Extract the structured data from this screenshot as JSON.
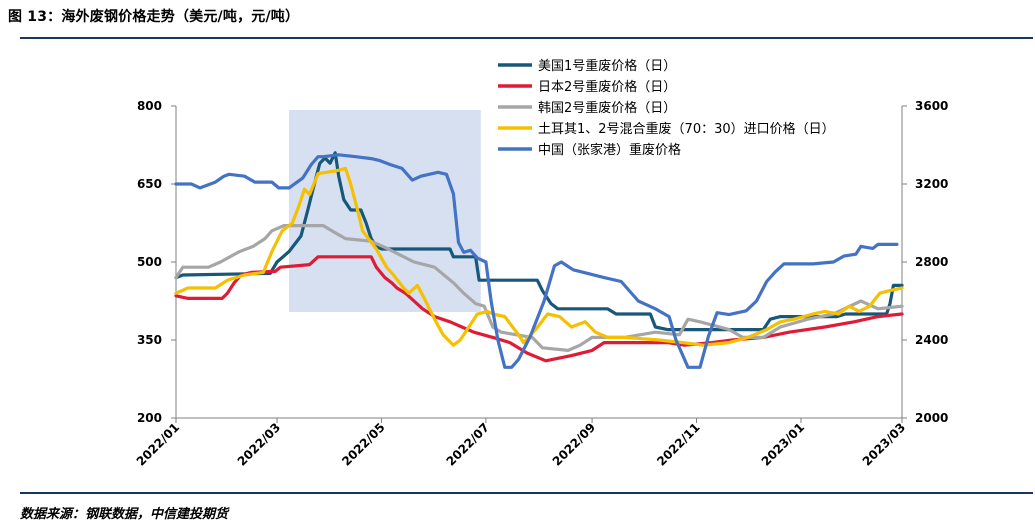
{
  "figure": {
    "title": "图 13：海外废钢价格走势（美元/吨，元/吨）",
    "source": "数据来源：钢联数据，中信建投期货"
  },
  "chart_data": {
    "type": "line",
    "xlabel": "",
    "ylabel_left": "",
    "ylabel_right": "",
    "x_ticks": [
      "2022/01",
      "2022/03",
      "2022/05",
      "2022/07",
      "2022/09",
      "2022/11",
      "2023/01",
      "2023/03"
    ],
    "x_range": [
      "2022-01-01",
      "2023-03-01"
    ],
    "y_left_ticks": [
      200,
      350,
      500,
      650,
      800
    ],
    "y_left_lim": [
      200,
      800
    ],
    "y_right_ticks": [
      2000,
      2400,
      2800,
      3200,
      3600
    ],
    "y_right_lim": [
      2000,
      3600
    ],
    "legend_position": "top-right",
    "highlight": {
      "x_start": "2022-03-08",
      "x_end": "2022-06-28",
      "color": "#d6e0f0"
    },
    "series": [
      {
        "name": "美国1号重废价格（日）",
        "axis": "left",
        "color": "#17587a",
        "points": [
          [
            "2022-01-01",
            470
          ],
          [
            "2022-01-05",
            475
          ],
          [
            "2022-02-25",
            478
          ],
          [
            "2022-03-01",
            500
          ],
          [
            "2022-03-08",
            520
          ],
          [
            "2022-03-15",
            550
          ],
          [
            "2022-03-19",
            600
          ],
          [
            "2022-03-22",
            640
          ],
          [
            "2022-03-26",
            690
          ],
          [
            "2022-03-29",
            700
          ],
          [
            "2022-04-01",
            690
          ],
          [
            "2022-04-04",
            710
          ],
          [
            "2022-04-06",
            665
          ],
          [
            "2022-04-09",
            620
          ],
          [
            "2022-04-13",
            600
          ],
          [
            "2022-04-19",
            600
          ],
          [
            "2022-04-22",
            575
          ],
          [
            "2022-04-25",
            545
          ],
          [
            "2022-04-28",
            530
          ],
          [
            "2022-05-01",
            525
          ],
          [
            "2022-06-10",
            525
          ],
          [
            "2022-06-12",
            510
          ],
          [
            "2022-06-25",
            510
          ],
          [
            "2022-06-27",
            465
          ],
          [
            "2022-07-31",
            465
          ],
          [
            "2022-08-03",
            445
          ],
          [
            "2022-08-08",
            420
          ],
          [
            "2022-08-12",
            410
          ],
          [
            "2022-09-10",
            410
          ],
          [
            "2022-09-15",
            400
          ],
          [
            "2022-10-05",
            400
          ],
          [
            "2022-10-08",
            375
          ],
          [
            "2022-10-15",
            370
          ],
          [
            "2022-12-10",
            370
          ],
          [
            "2022-12-14",
            390
          ],
          [
            "2022-12-20",
            395
          ],
          [
            "2023-01-22",
            395
          ],
          [
            "2023-01-27",
            400
          ],
          [
            "2023-02-20",
            400
          ],
          [
            "2023-02-22",
            420
          ],
          [
            "2023-02-24",
            455
          ],
          [
            "2023-03-01",
            455
          ]
        ]
      },
      {
        "name": "日本2号重废价格（日）",
        "axis": "left",
        "color": "#e01b36",
        "points": [
          [
            "2022-01-01",
            435
          ],
          [
            "2022-01-08",
            430
          ],
          [
            "2022-01-28",
            430
          ],
          [
            "2022-01-31",
            440
          ],
          [
            "2022-02-04",
            460
          ],
          [
            "2022-02-08",
            475
          ],
          [
            "2022-02-14",
            480
          ],
          [
            "2022-02-28",
            482
          ],
          [
            "2022-03-03",
            490
          ],
          [
            "2022-03-20",
            495
          ],
          [
            "2022-03-25",
            510
          ],
          [
            "2022-04-25",
            510
          ],
          [
            "2022-04-28",
            490
          ],
          [
            "2022-05-03",
            470
          ],
          [
            "2022-05-07",
            460
          ],
          [
            "2022-05-10",
            450
          ],
          [
            "2022-05-15",
            440
          ],
          [
            "2022-05-20",
            425
          ],
          [
            "2022-05-25",
            410
          ],
          [
            "2022-06-01",
            395
          ],
          [
            "2022-06-10",
            385
          ],
          [
            "2022-06-17",
            375
          ],
          [
            "2022-06-24",
            365
          ],
          [
            "2022-07-05",
            355
          ],
          [
            "2022-07-15",
            345
          ],
          [
            "2022-07-25",
            325
          ],
          [
            "2022-08-05",
            310
          ],
          [
            "2022-08-20",
            320
          ],
          [
            "2022-09-01",
            330
          ],
          [
            "2022-09-08",
            345
          ],
          [
            "2022-10-15",
            345
          ],
          [
            "2022-10-25",
            340
          ],
          [
            "2022-11-10",
            345
          ],
          [
            "2022-11-22",
            350
          ],
          [
            "2022-12-10",
            355
          ],
          [
            "2022-12-25",
            365
          ],
          [
            "2023-01-15",
            375
          ],
          [
            "2023-02-01",
            385
          ],
          [
            "2023-02-15",
            395
          ],
          [
            "2023-03-01",
            400
          ]
        ]
      },
      {
        "name": "韩国2号重废价格（日）",
        "axis": "left",
        "color": "#a6a6a6",
        "points": [
          [
            "2022-01-01",
            470
          ],
          [
            "2022-01-05",
            490
          ],
          [
            "2022-01-20",
            490
          ],
          [
            "2022-01-27",
            500
          ],
          [
            "2022-02-07",
            520
          ],
          [
            "2022-02-15",
            530
          ],
          [
            "2022-02-22",
            545
          ],
          [
            "2022-02-26",
            560
          ],
          [
            "2022-03-05",
            570
          ],
          [
            "2022-03-28",
            570
          ],
          [
            "2022-04-02",
            560
          ],
          [
            "2022-04-10",
            545
          ],
          [
            "2022-04-25",
            540
          ],
          [
            "2022-05-05",
            525
          ],
          [
            "2022-05-20",
            500
          ],
          [
            "2022-06-01",
            490
          ],
          [
            "2022-06-12",
            460
          ],
          [
            "2022-06-18",
            440
          ],
          [
            "2022-06-25",
            420
          ],
          [
            "2022-06-30",
            415
          ],
          [
            "2022-07-05",
            375
          ],
          [
            "2022-07-10",
            365
          ],
          [
            "2022-07-28",
            355
          ],
          [
            "2022-08-03",
            335
          ],
          [
            "2022-08-18",
            330
          ],
          [
            "2022-08-25",
            340
          ],
          [
            "2022-09-01",
            355
          ],
          [
            "2022-09-20",
            355
          ],
          [
            "2022-10-08",
            365
          ],
          [
            "2022-10-22",
            360
          ],
          [
            "2022-10-27",
            390
          ],
          [
            "2022-11-03",
            385
          ],
          [
            "2022-11-20",
            370
          ],
          [
            "2022-11-28",
            355
          ],
          [
            "2022-12-10",
            355
          ],
          [
            "2022-12-20",
            375
          ],
          [
            "2023-01-05",
            390
          ],
          [
            "2023-01-20",
            400
          ],
          [
            "2023-02-05",
            425
          ],
          [
            "2023-02-15",
            410
          ],
          [
            "2023-03-01",
            415
          ]
        ]
      },
      {
        "name": "土耳其1、2号混合重废（70：30）进口价格（日）",
        "axis": "left",
        "color": "#f5c000",
        "points": [
          [
            "2022-01-01",
            440
          ],
          [
            "2022-01-08",
            450
          ],
          [
            "2022-01-24",
            450
          ],
          [
            "2022-01-31",
            465
          ],
          [
            "2022-02-10",
            475
          ],
          [
            "2022-02-21",
            480
          ],
          [
            "2022-02-26",
            520
          ],
          [
            "2022-03-04",
            560
          ],
          [
            "2022-03-10",
            575
          ],
          [
            "2022-03-14",
            610
          ],
          [
            "2022-03-17",
            640
          ],
          [
            "2022-03-20",
            630
          ],
          [
            "2022-03-25",
            670
          ],
          [
            "2022-04-04",
            675
          ],
          [
            "2022-04-10",
            680
          ],
          [
            "2022-04-13",
            650
          ],
          [
            "2022-04-17",
            600
          ],
          [
            "2022-04-20",
            560
          ],
          [
            "2022-04-28",
            525
          ],
          [
            "2022-05-04",
            490
          ],
          [
            "2022-05-08",
            475
          ],
          [
            "2022-05-14",
            450
          ],
          [
            "2022-05-17",
            440
          ],
          [
            "2022-05-22",
            455
          ],
          [
            "2022-05-26",
            430
          ],
          [
            "2022-06-01",
            390
          ],
          [
            "2022-06-06",
            360
          ],
          [
            "2022-06-12",
            340
          ],
          [
            "2022-06-16",
            350
          ],
          [
            "2022-06-20",
            370
          ],
          [
            "2022-06-26",
            400
          ],
          [
            "2022-07-02",
            405
          ],
          [
            "2022-07-05",
            400
          ],
          [
            "2022-07-12",
            395
          ],
          [
            "2022-07-20",
            360
          ],
          [
            "2022-07-23",
            345
          ],
          [
            "2022-07-30",
            370
          ],
          [
            "2022-08-06",
            400
          ],
          [
            "2022-08-13",
            395
          ],
          [
            "2022-08-20",
            375
          ],
          [
            "2022-08-28",
            385
          ],
          [
            "2022-09-03",
            365
          ],
          [
            "2022-09-10",
            355
          ],
          [
            "2022-09-20",
            355
          ],
          [
            "2022-10-10",
            350
          ],
          [
            "2022-10-24",
            345
          ],
          [
            "2022-11-05",
            340
          ],
          [
            "2022-11-20",
            345
          ],
          [
            "2022-12-01",
            355
          ],
          [
            "2022-12-12",
            370
          ],
          [
            "2022-12-20",
            385
          ],
          [
            "2022-12-28",
            390
          ],
          [
            "2023-01-08",
            400
          ],
          [
            "2023-01-15",
            405
          ],
          [
            "2023-01-23",
            400
          ],
          [
            "2023-01-29",
            415
          ],
          [
            "2023-02-04",
            405
          ],
          [
            "2023-02-10",
            415
          ],
          [
            "2023-02-16",
            440
          ],
          [
            "2023-02-22",
            445
          ],
          [
            "2023-03-01",
            450
          ]
        ]
      },
      {
        "name": "中国（张家港）重废价格",
        "axis": "right",
        "color": "#4472c4",
        "points": [
          [
            "2022-01-01",
            3200
          ],
          [
            "2022-01-10",
            3200
          ],
          [
            "2022-01-15",
            3180
          ],
          [
            "2022-01-24",
            3210
          ],
          [
            "2022-01-29",
            3240
          ],
          [
            "2022-02-01",
            3250
          ],
          [
            "2022-02-10",
            3240
          ],
          [
            "2022-02-16",
            3210
          ],
          [
            "2022-02-26",
            3210
          ],
          [
            "2022-03-02",
            3180
          ],
          [
            "2022-03-08",
            3180
          ],
          [
            "2022-03-16",
            3230
          ],
          [
            "2022-03-21",
            3300
          ],
          [
            "2022-03-25",
            3340
          ],
          [
            "2022-03-28",
            3340
          ],
          [
            "2022-04-06",
            3350
          ],
          [
            "2022-04-16",
            3340
          ],
          [
            "2022-04-25",
            3330
          ],
          [
            "2022-04-30",
            3320
          ],
          [
            "2022-05-06",
            3300
          ],
          [
            "2022-05-13",
            3280
          ],
          [
            "2022-05-19",
            3220
          ],
          [
            "2022-05-24",
            3240
          ],
          [
            "2022-06-03",
            3260
          ],
          [
            "2022-06-08",
            3250
          ],
          [
            "2022-06-12",
            3150
          ],
          [
            "2022-06-15",
            2900
          ],
          [
            "2022-06-18",
            2850
          ],
          [
            "2022-06-22",
            2860
          ],
          [
            "2022-06-26",
            2820
          ],
          [
            "2022-07-01",
            2800
          ],
          [
            "2022-07-04",
            2600
          ],
          [
            "2022-07-08",
            2400
          ],
          [
            "2022-07-12",
            2260
          ],
          [
            "2022-07-16",
            2260
          ],
          [
            "2022-07-20",
            2300
          ],
          [
            "2022-07-27",
            2420
          ],
          [
            "2022-08-04",
            2600
          ],
          [
            "2022-08-10",
            2780
          ],
          [
            "2022-08-14",
            2800
          ],
          [
            "2022-08-21",
            2760
          ],
          [
            "2022-08-30",
            2740
          ],
          [
            "2022-09-08",
            2720
          ],
          [
            "2022-09-18",
            2700
          ],
          [
            "2022-09-28",
            2600
          ],
          [
            "2022-10-08",
            2560
          ],
          [
            "2022-10-16",
            2520
          ],
          [
            "2022-10-20",
            2400
          ],
          [
            "2022-10-27",
            2260
          ],
          [
            "2022-11-03",
            2260
          ],
          [
            "2022-11-08",
            2420
          ],
          [
            "2022-11-13",
            2540
          ],
          [
            "2022-11-20",
            2530
          ],
          [
            "2022-11-30",
            2550
          ],
          [
            "2022-12-06",
            2600
          ],
          [
            "2022-12-12",
            2700
          ],
          [
            "2022-12-17",
            2750
          ],
          [
            "2022-12-22",
            2790
          ],
          [
            "2023-01-08",
            2790
          ],
          [
            "2023-01-20",
            2800
          ],
          [
            "2023-01-26",
            2830
          ],
          [
            "2023-02-02",
            2840
          ],
          [
            "2023-02-05",
            2880
          ],
          [
            "2023-02-12",
            2870
          ],
          [
            "2023-02-15",
            2890
          ],
          [
            "2023-02-26",
            2890
          ]
        ]
      }
    ]
  }
}
